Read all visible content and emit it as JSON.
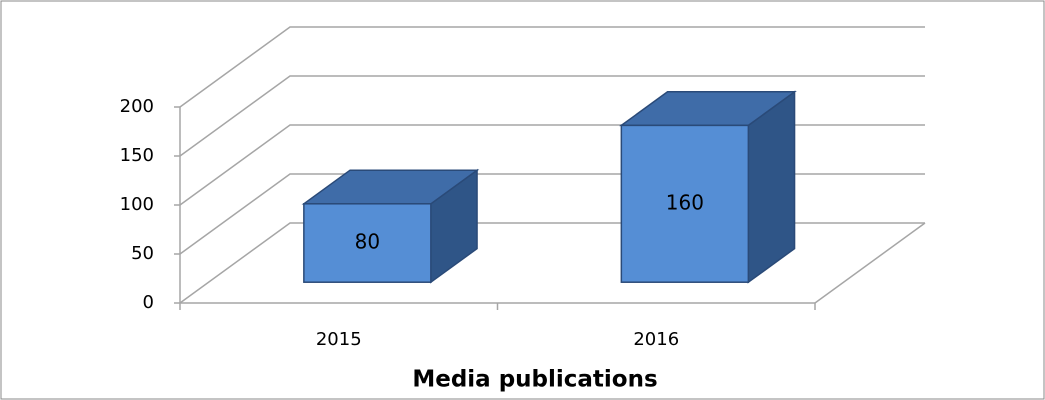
{
  "chart_data": {
    "type": "bar3d",
    "x_label": "Media publications",
    "categories": [
      "2015",
      "2016"
    ],
    "values": [
      80,
      160
    ],
    "color": "#558ed5",
    "ylim": [
      0,
      200
    ],
    "yticks": [
      0,
      50,
      100,
      150,
      200
    ],
    "grid": true
  }
}
